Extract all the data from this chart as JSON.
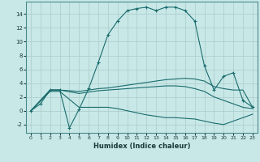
{
  "xlabel": "Humidex (Indice chaleur)",
  "xlim": [
    -0.5,
    23.5
  ],
  "ylim": [
    -3.2,
    15.8
  ],
  "yticks": [
    -2,
    0,
    2,
    4,
    6,
    8,
    10,
    12,
    14
  ],
  "xticks": [
    0,
    1,
    2,
    3,
    4,
    5,
    6,
    7,
    8,
    9,
    10,
    11,
    12,
    13,
    14,
    15,
    16,
    17,
    18,
    19,
    20,
    21,
    22,
    23
  ],
  "bg_color": "#c8e8e8",
  "grid_color": "#b0d0d0",
  "line_color": "#1a6b6b",
  "lines": [
    {
      "x": [
        0,
        1,
        2,
        3,
        4,
        5,
        6,
        7,
        8,
        9,
        10,
        11,
        12,
        13,
        14,
        15,
        16,
        17,
        18,
        19,
        20,
        21,
        22,
        23
      ],
      "y": [
        0,
        1,
        3,
        3,
        -2.5,
        0.2,
        3.2,
        7,
        11,
        13,
        14.5,
        14.8,
        15,
        14.5,
        15,
        15,
        14.5,
        13,
        6.5,
        3,
        5,
        5.5,
        1.5,
        0.5
      ],
      "marker": "+"
    },
    {
      "x": [
        0,
        2,
        3,
        5,
        6,
        7,
        8,
        9,
        10,
        11,
        12,
        13,
        14,
        15,
        16,
        17,
        18,
        19,
        20,
        21,
        22,
        23
      ],
      "y": [
        0,
        3,
        3,
        2.8,
        3.0,
        3.2,
        3.3,
        3.5,
        3.7,
        3.9,
        4.1,
        4.3,
        4.5,
        4.6,
        4.7,
        4.6,
        4.3,
        3.5,
        3.2,
        3.0,
        3.0,
        0.5
      ],
      "marker": null
    },
    {
      "x": [
        0,
        2,
        3,
        5,
        6,
        7,
        8,
        9,
        10,
        11,
        12,
        13,
        14,
        15,
        16,
        17,
        18,
        19,
        20,
        21,
        22,
        23
      ],
      "y": [
        0,
        3,
        3,
        2.5,
        2.7,
        2.9,
        3.0,
        3.1,
        3.2,
        3.3,
        3.4,
        3.5,
        3.6,
        3.6,
        3.5,
        3.2,
        2.8,
        2.0,
        1.5,
        1.0,
        0.5,
        0.3
      ],
      "marker": null
    },
    {
      "x": [
        0,
        2,
        3,
        5,
        6,
        7,
        8,
        9,
        10,
        11,
        12,
        13,
        14,
        15,
        16,
        17,
        18,
        19,
        20,
        21,
        22,
        23
      ],
      "y": [
        0,
        2.8,
        2.8,
        0.5,
        0.5,
        0.5,
        0.5,
        0.3,
        0.0,
        -0.3,
        -0.6,
        -0.8,
        -1.0,
        -1.0,
        -1.1,
        -1.2,
        -1.5,
        -1.8,
        -2.0,
        -1.5,
        -1.0,
        -0.5
      ],
      "marker": null
    }
  ]
}
